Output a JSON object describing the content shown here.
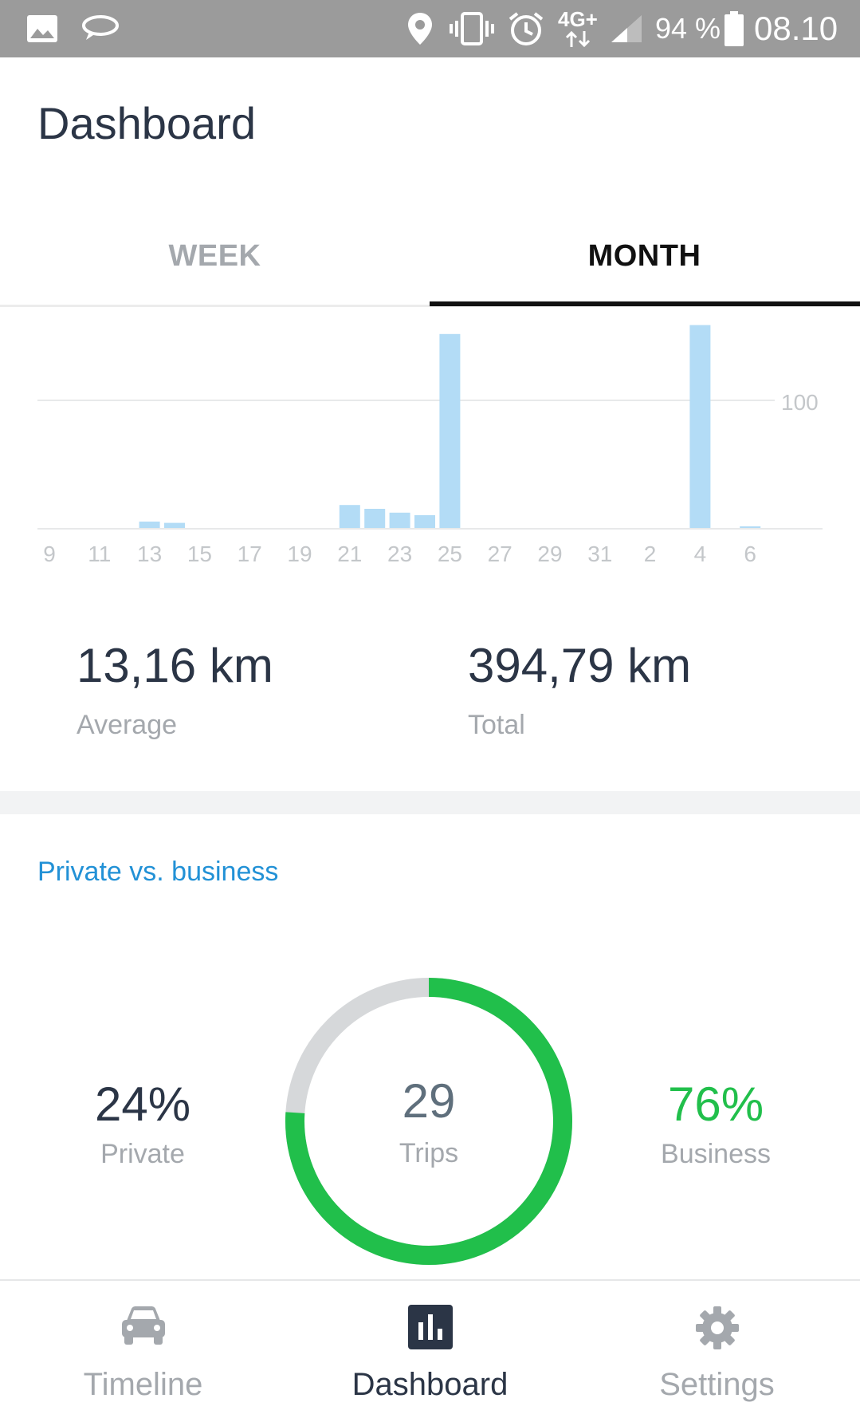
{
  "status_bar": {
    "battery": "94 %",
    "network": "4G+",
    "time": "08.10"
  },
  "header": {
    "title": "Dashboard"
  },
  "tabs": [
    {
      "label": "WEEK",
      "selected": false
    },
    {
      "label": "MONTH",
      "selected": true
    }
  ],
  "chart_data": {
    "type": "bar",
    "x_tick_labels": [
      "9",
      "11",
      "13",
      "15",
      "17",
      "19",
      "21",
      "23",
      "25",
      "27",
      "29",
      "31",
      "2",
      "4",
      "6"
    ],
    "y_reference_label": "100",
    "y_reference_value": 100,
    "ylim": [
      0,
      160
    ],
    "bars": [
      {
        "x": "13",
        "value": 5
      },
      {
        "x": "14",
        "value": 4
      },
      {
        "x": "21",
        "value": 18
      },
      {
        "x": "22",
        "value": 15
      },
      {
        "x": "23",
        "value": 12
      },
      {
        "x": "24",
        "value": 10
      },
      {
        "x": "25",
        "value": 152
      },
      {
        "x": "4",
        "value": 159
      },
      {
        "x": "6",
        "value": 1
      }
    ],
    "bar_color": "#b3dcf6",
    "grid_color": "#e8e9ea"
  },
  "stats": {
    "average": {
      "value": "13,16 km",
      "label": "Average"
    },
    "total": {
      "value": "394,79 km",
      "label": "Total"
    }
  },
  "private_business": {
    "section_title": "Private vs. business",
    "private": {
      "value": "24%",
      "label": "Private",
      "fraction": 0.24,
      "color": "#d6d8da"
    },
    "business": {
      "value": "76%",
      "label": "Business",
      "fraction": 0.76,
      "color": "#21bf4b"
    },
    "trips": {
      "value": "29",
      "label": "Trips"
    }
  },
  "bottom_nav": [
    {
      "label": "Timeline",
      "icon": "car-icon",
      "active": false
    },
    {
      "label": "Dashboard",
      "icon": "bar-chart-icon",
      "active": true
    },
    {
      "label": "Settings",
      "icon": "gear-icon",
      "active": false
    }
  ]
}
